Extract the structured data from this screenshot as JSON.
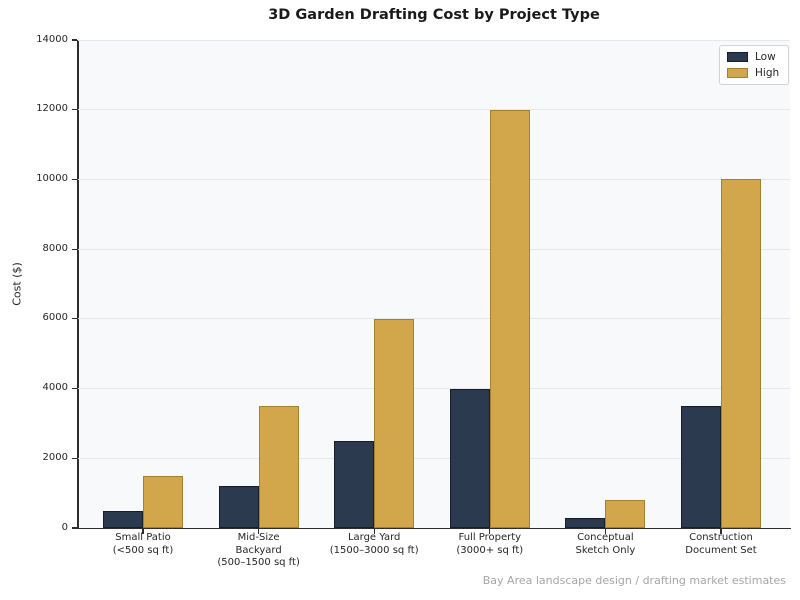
{
  "chart_data": {
    "type": "bar",
    "title": "3D Garden Drafting Cost by Project Type",
    "xlabel": "",
    "ylabel": "Cost ($)",
    "ylim": [
      0,
      14000
    ],
    "yticks": [
      0,
      2000,
      4000,
      6000,
      8000,
      10000,
      12000,
      14000
    ],
    "grid": true,
    "legend_position": "upper right",
    "categories": [
      "Small Patio\n(<500 sq ft)",
      "Mid-Size\nBackyard\n(500–1500 sq ft)",
      "Large Yard\n(1500–3000 sq ft)",
      "Full Property\n(3000+ sq ft)",
      "Conceptual\nSketch Only",
      "Construction\nDocument Set"
    ],
    "series": [
      {
        "name": "Low",
        "color": "#2b3a4e",
        "edge_color": "#151e29",
        "values": [
          500,
          1200,
          2500,
          4000,
          300,
          3500
        ]
      },
      {
        "name": "High",
        "color": "#d2a74b",
        "edge_color": "#a5812f",
        "values": [
          1500,
          3500,
          6000,
          12000,
          800,
          10000
        ]
      }
    ],
    "caption": "Bay Area landscape design / drafting market estimates",
    "colors": {
      "plot_background": "#f7f9fb",
      "gridline": "#e4e7eb",
      "spine": "#2d2d2d",
      "title_text": "#1a1a1a",
      "tick_text": "#262626",
      "caption_text": "#a6a6a6"
    }
  }
}
